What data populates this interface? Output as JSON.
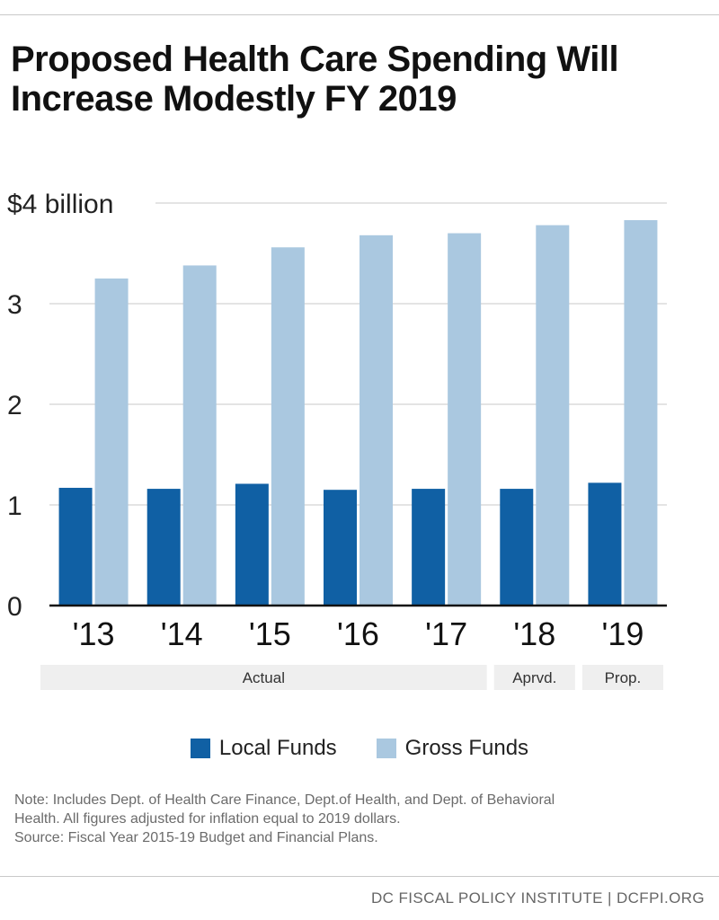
{
  "title_line1": "Proposed Health Care Spending Will",
  "title_line2": "Increase Modestly FY 2019",
  "chart_data": {
    "type": "bar",
    "categories": [
      "'13",
      "'14",
      "'15",
      "'16",
      "'17",
      "'18",
      "'19"
    ],
    "series": [
      {
        "name": "Local Funds",
        "color": "#1060a4",
        "values": [
          1.17,
          1.16,
          1.21,
          1.15,
          1.16,
          1.16,
          1.22
        ]
      },
      {
        "name": "Gross Funds",
        "color": "#aac8e0",
        "values": [
          3.25,
          3.38,
          3.56,
          3.68,
          3.7,
          3.78,
          3.83
        ]
      }
    ],
    "yticks": [
      {
        "value": 0,
        "label": "0"
      },
      {
        "value": 1,
        "label": "1"
      },
      {
        "value": 2,
        "label": "2"
      },
      {
        "value": 3,
        "label": "3"
      },
      {
        "value": 4,
        "label": "$4 billion"
      }
    ],
    "ylim": [
      0,
      4
    ],
    "groups": [
      {
        "label": "Actual",
        "from": 0,
        "to": 4
      },
      {
        "label": "Aprvd.",
        "from": 5,
        "to": 5
      },
      {
        "label": "Prop.",
        "from": 6,
        "to": 6
      }
    ],
    "grid": true,
    "legend_position": "bottom"
  },
  "note_line1": "Note: Includes Dept. of Health Care Finance, Dept.of Health, and Dept. of Behavioral",
  "note_line2": "Health. All figures adjusted for inflation equal to 2019 dollars.",
  "note_line3": "Source: Fiscal Year 2015-19 Budget and Financial Plans.",
  "footer": "DC FISCAL POLICY INSTITUTE | DCFPI.ORG"
}
